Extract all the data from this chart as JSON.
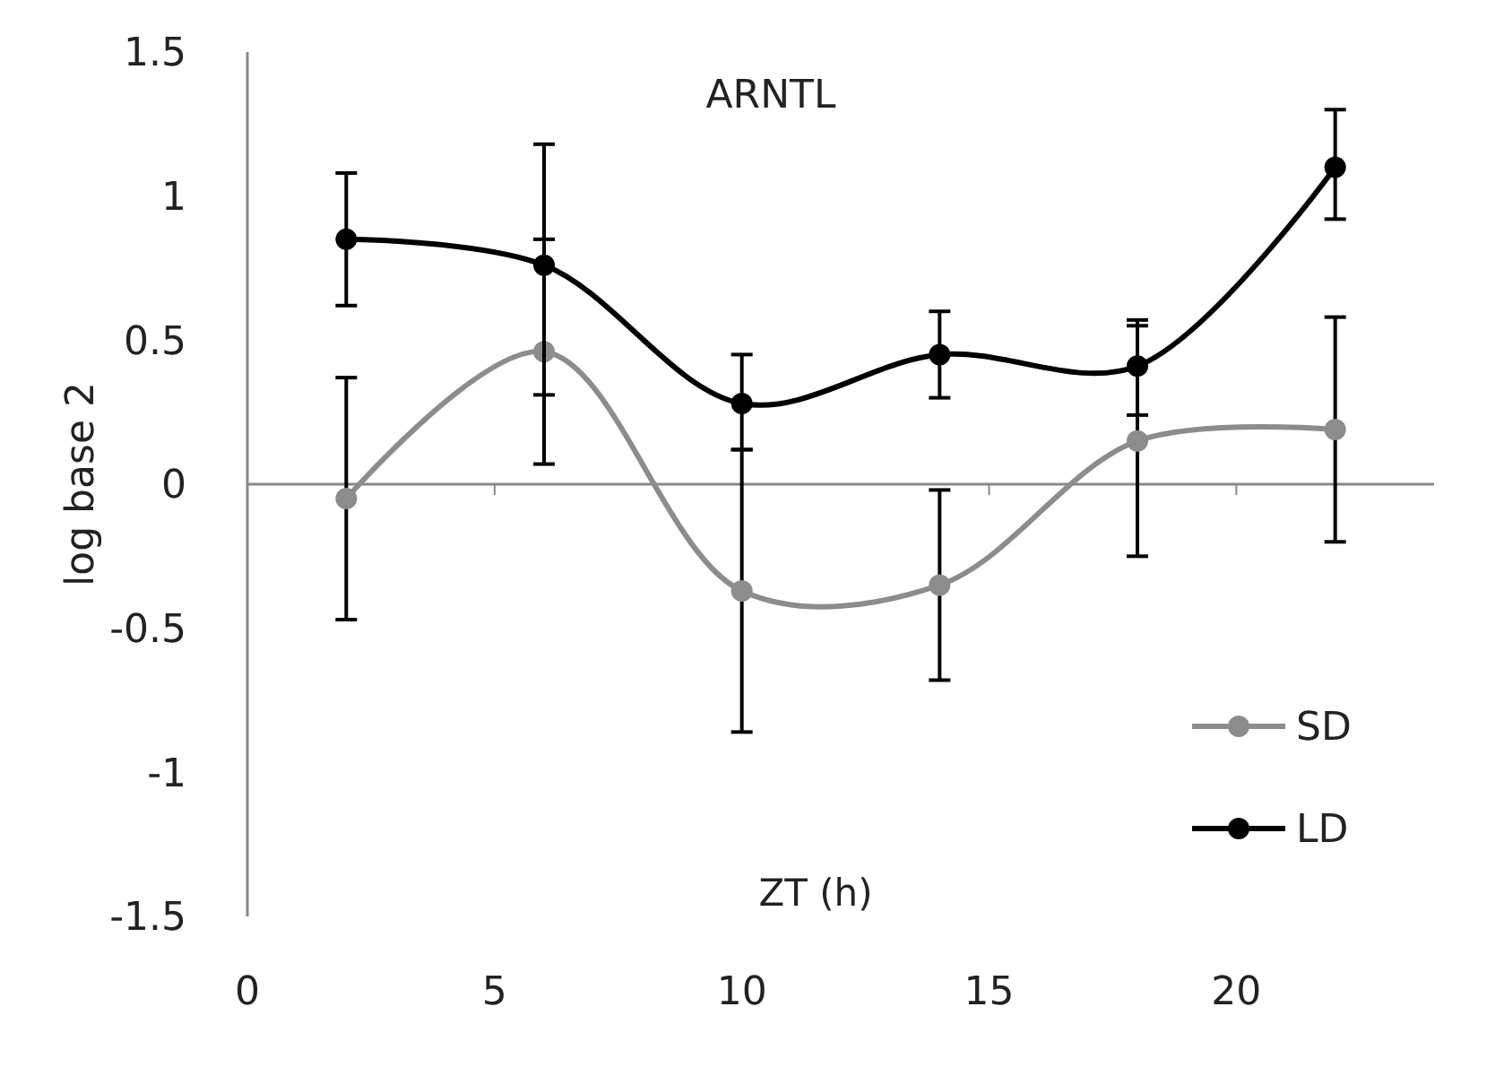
{
  "chart_data": {
    "type": "line",
    "title": "ARNTL",
    "xlabel": "ZT (h)",
    "ylabel": "log base 2",
    "x": [
      2,
      6,
      10,
      14,
      18,
      22
    ],
    "series": [
      {
        "name": "SD",
        "color": "#8c8c8c",
        "values": [
          -0.05,
          0.46,
          -0.37,
          -0.35,
          0.15,
          0.19
        ],
        "errors": [
          [
            -0.47,
            0.37
          ],
          [
            0.07,
            0.85
          ],
          [
            -0.86,
            0.12
          ],
          [
            -0.68,
            -0.02
          ],
          [
            -0.25,
            0.55
          ],
          [
            -0.2,
            0.58
          ]
        ]
      },
      {
        "name": "LD",
        "color": "#000000",
        "values": [
          0.85,
          0.76,
          0.28,
          0.45,
          0.41,
          1.1
        ],
        "errors": [
          [
            0.62,
            1.08
          ],
          [
            0.31,
            1.18
          ],
          [
            0.12,
            0.45
          ],
          [
            0.3,
            0.6
          ],
          [
            0.24,
            0.57
          ],
          [
            0.92,
            1.3
          ]
        ]
      }
    ],
    "xlim": [
      0,
      24
    ],
    "xticks": [
      0,
      5,
      10,
      15,
      20
    ],
    "ylim": [
      -1.5,
      1.5
    ],
    "yticks": [
      -1.5,
      -1,
      -0.5,
      0,
      0.5,
      1,
      1.5
    ],
    "legend": "right",
    "marker": "circle",
    "line_style": "solid"
  }
}
